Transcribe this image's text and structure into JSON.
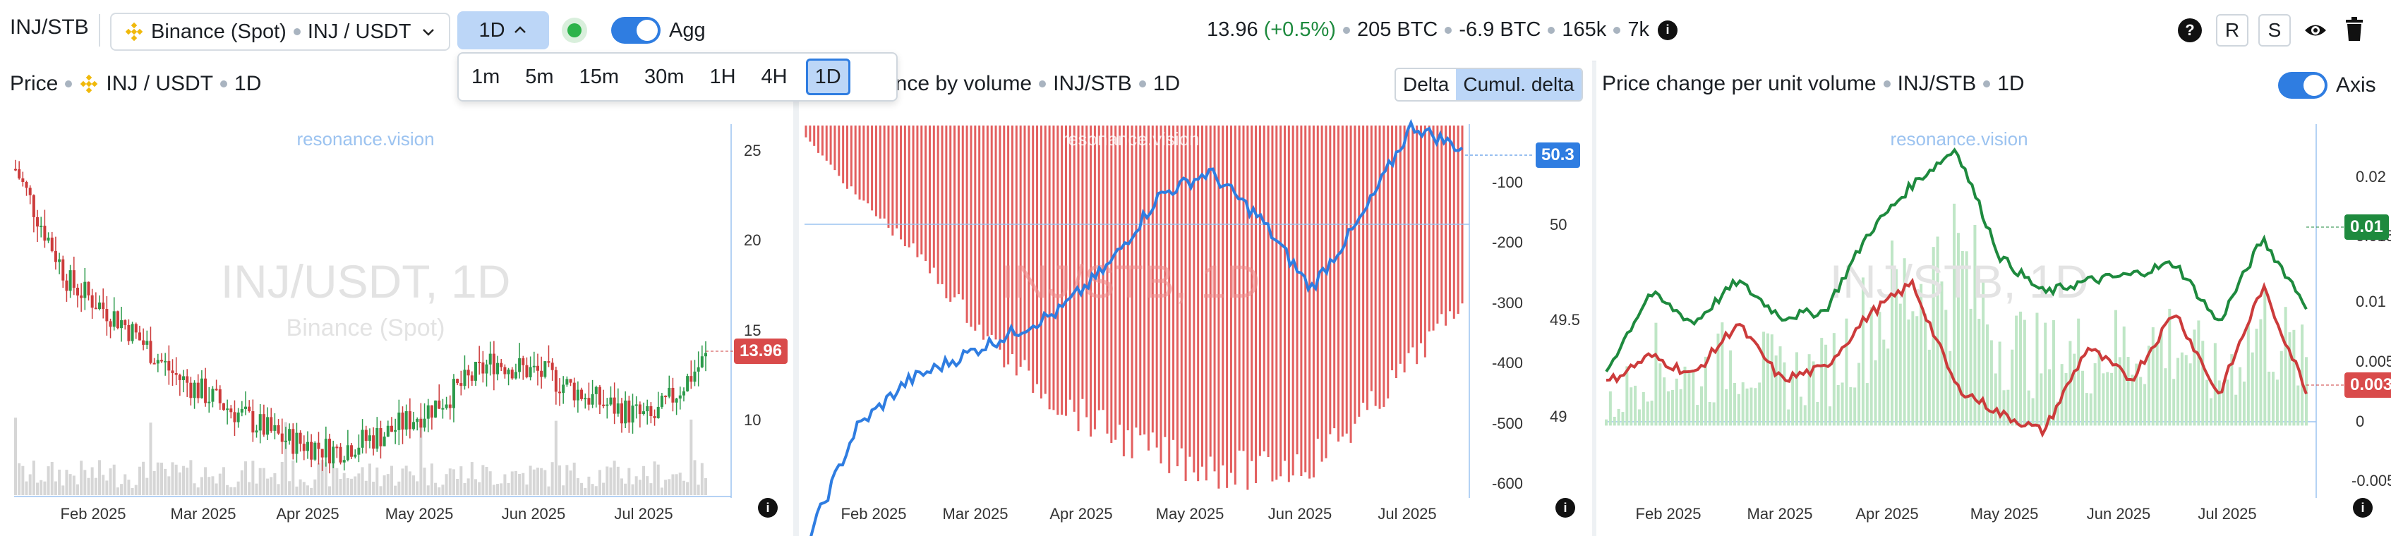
{
  "topbar": {
    "symbol": "INJ/STB",
    "exchange": "Binance (Spot)",
    "pair": "INJ / USDT",
    "interval": "1D",
    "agg_label": "Agg",
    "price": "13.96",
    "change": "(+0.5%)",
    "stat1": "205 BTC",
    "stat2": "-6.9 BTC",
    "stat3": "165k",
    "stat4": "7k",
    "btn_r": "R",
    "btn_s": "S",
    "accent": "#2f7de1"
  },
  "interval_menu": [
    "1m",
    "5m",
    "15m",
    "30m",
    "1H",
    "4H",
    "1D"
  ],
  "interval_selected": "1D",
  "panels": {
    "price": {
      "title": "Price",
      "exchange_icon": "binance-icon",
      "pair": "INJ / USDT",
      "interval": "1D",
      "watermark_site": "resonance.vision",
      "watermark_big": "INJ/USDT, 1D",
      "watermark_sub": "Binance (Spot)",
      "last_price": "13.96",
      "y_ticks": [
        "25",
        "20",
        "15",
        "10"
      ],
      "x_ticks": [
        "Feb 2025",
        "Mar 2025",
        "Apr 2025",
        "May 2025",
        "Jun 2025",
        "Jul 2025"
      ]
    },
    "volume": {
      "title": "ance by volume",
      "symbol": "INJ/STB",
      "interval": "1D",
      "tab_delta": "Delta",
      "tab_cumul": "Cumul. delta",
      "watermark_site": "resonance.vision",
      "watermark_big": "INJ/STB, 1D",
      "last_value": "50.3",
      "y_ticks_left": [
        "-100",
        "-200",
        "-300",
        "-400",
        "-500",
        "-600"
      ],
      "y_ticks_right": [
        "50",
        "49.5",
        "49"
      ],
      "x_ticks": [
        "Feb 2025",
        "Mar 2025",
        "Apr 2025",
        "May 2025",
        "Jun 2025",
        "Jul 2025"
      ]
    },
    "change": {
      "title": "Price change per unit volume",
      "symbol": "INJ/STB",
      "interval": "1D",
      "axis_label": "Axis",
      "watermark_site": "resonance.vision",
      "watermark_big": "INJ/STB, 1D",
      "green_value": "0.01",
      "red_value": "0.003",
      "y_ticks": [
        "0.02",
        "0.015",
        "0.01",
        "0.005",
        "0",
        "-0.005"
      ],
      "x_ticks": [
        "Feb 2025",
        "Mar 2025",
        "Apr 2025",
        "May 2025",
        "Jun 2025",
        "Jul 2025"
      ]
    }
  },
  "chart_data": [
    {
      "type": "candlestick",
      "title": "INJ / USDT, 1D",
      "x": [
        "2025-01-15",
        "2025-02-01",
        "2025-02-15",
        "2025-03-01",
        "2025-03-15",
        "2025-04-01",
        "2025-04-08",
        "2025-04-15",
        "2025-05-01",
        "2025-05-15",
        "2025-06-01",
        "2025-06-15",
        "2025-07-01",
        "2025-07-15"
      ],
      "close": [
        24.5,
        18.2,
        16.0,
        13.0,
        11.2,
        9.5,
        8.8,
        9.8,
        11.5,
        13.8,
        13.0,
        11.5,
        10.5,
        13.96
      ],
      "ylim": [
        7,
        27
      ],
      "last": 13.96
    },
    {
      "type": "bar-line",
      "title": "ance by volume INJ/STB 1D",
      "series": [
        {
          "name": "Delta",
          "values": [
            -20,
            -120,
            -200,
            -300,
            -400,
            -470,
            -520,
            -560,
            -580,
            -590,
            -570,
            -500,
            -400,
            -300
          ]
        },
        {
          "name": "Cumul. delta",
          "values": [
            48.6,
            49.1,
            49.3,
            49.4,
            49.5,
            49.6,
            49.8,
            50.1,
            50.2,
            50.0,
            49.7,
            50.0,
            50.4,
            50.3
          ]
        }
      ],
      "ylim_left": [
        -620,
        0
      ],
      "ylim_right": [
        48.8,
        50.4
      ],
      "last": 50.3
    },
    {
      "type": "line",
      "title": "Price change per unit volume INJ/STB 1D",
      "series": [
        {
          "name": "green",
          "color": "#1e8a3e",
          "values": [
            0.0045,
            0.011,
            0.0085,
            0.012,
            0.009,
            0.0095,
            0.016,
            0.02,
            0.023,
            0.014,
            0.011,
            0.012,
            0.0125,
            0.0135,
            0.0085,
            0.0155,
            0.01
          ]
        },
        {
          "name": "red",
          "color": "#cc3b3b",
          "values": [
            0.0035,
            0.0058,
            0.0042,
            0.0085,
            0.0038,
            0.0048,
            0.0092,
            0.0118,
            0.0032,
            0.001,
            -0.0005,
            0.0065,
            0.0038,
            0.0095,
            0.0025,
            0.0115,
            0.003
          ]
        }
      ],
      "ylim": [
        -0.006,
        0.025
      ],
      "green_last": 0.01,
      "red_last": 0.003
    }
  ]
}
